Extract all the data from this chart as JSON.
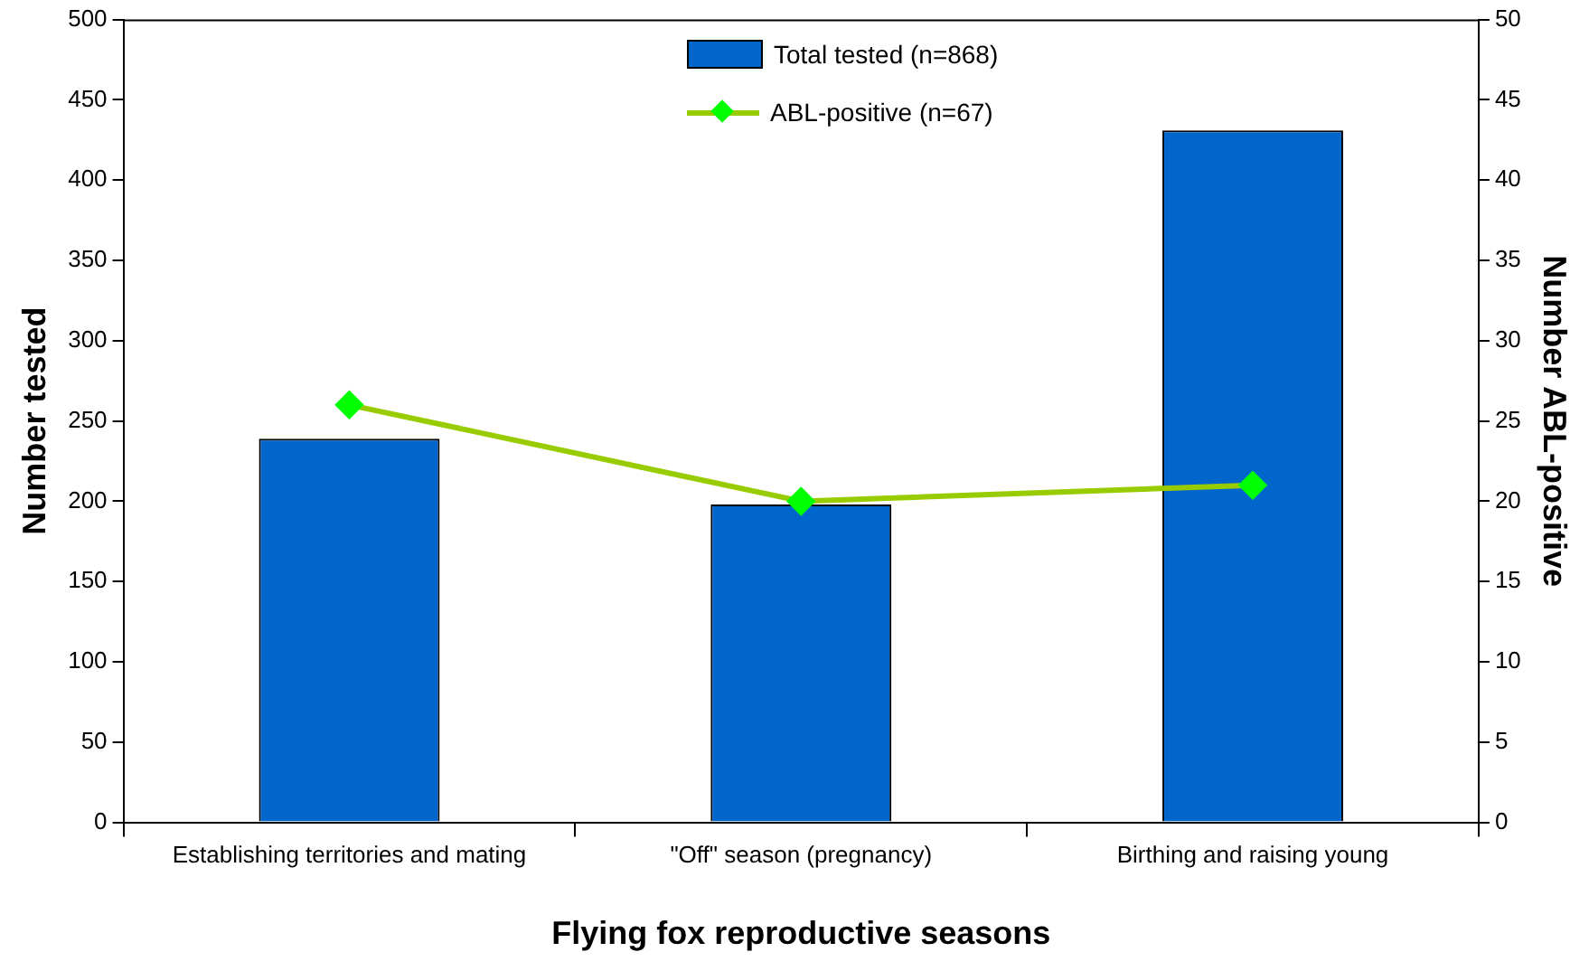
{
  "chart_data": {
    "type": "bar",
    "xlabel": "Flying fox reproductive seasons",
    "ylabel": "Number tested",
    "y2label": "Number ABL-positive",
    "categories": [
      "Establishing territories and mating",
      "\"Off\" season (pregnancy)",
      "Birthing and raising young"
    ],
    "series": [
      {
        "name": "Total tested (n=868)",
        "color": "#0066cc",
        "values": [
          239,
          198,
          431
        ]
      },
      {
        "name": "ABL-positive (n=67)",
        "type": "line",
        "axis": "y2",
        "color": "#99cc00",
        "values": [
          26,
          20,
          21
        ]
      }
    ],
    "ylim": [
      0,
      500
    ],
    "yticks": [
      0,
      50,
      100,
      150,
      200,
      250,
      300,
      350,
      400,
      450,
      500
    ],
    "y2lim": [
      0,
      50
    ],
    "y2ticks": [
      0,
      5,
      10,
      15,
      20,
      25,
      30,
      35,
      40,
      45,
      50
    ],
    "grid": false,
    "legend": "top",
    "marker": "diamond"
  }
}
